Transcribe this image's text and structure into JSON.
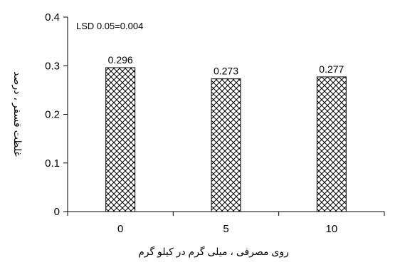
{
  "chart_data": {
    "type": "bar",
    "title": "",
    "categories": [
      "0",
      "5",
      "10"
    ],
    "values": [
      0.296,
      0.273,
      0.277
    ],
    "data_labels": [
      "0.296",
      "0.273",
      "0.277"
    ],
    "xlabel": "روی مصرفی ، میلی گرم در کیلو گرم",
    "ylabel": "غلظت فسفر ، درصد",
    "ylim": [
      0,
      0.4
    ],
    "yticks": [
      0,
      0.1,
      0.2,
      0.3,
      0.4
    ],
    "ytick_labels": [
      "0",
      "0.1",
      "0.2",
      "0.3",
      "0.4"
    ],
    "annotation": "LSD 0.05=0.004",
    "bar_fill": "crosshatch",
    "grid": false,
    "legend": "none"
  }
}
